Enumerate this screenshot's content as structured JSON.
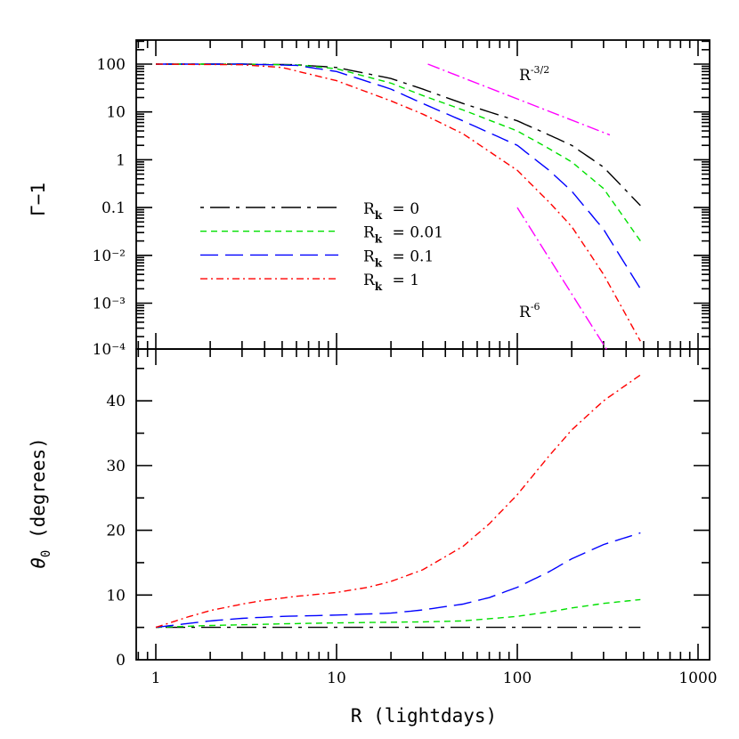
{
  "chart_data": [
    {
      "type": "line",
      "ylabel": "Γ−1",
      "xscale": "log",
      "yscale": "log",
      "xlim": [
        0.8,
        1170
      ],
      "ylim": [
        0.0001,
        316
      ],
      "x_ticks": [
        "1",
        "10",
        "100",
        "1000"
      ],
      "y_ticks": [
        "100",
        "10",
        "1",
        "0.1",
        "10⁻²",
        "10⁻³",
        "10⁻⁴"
      ],
      "legend_position": "center-left",
      "series": [
        {
          "name": "R_k = 0",
          "label_base": "R",
          "label_sub": "k",
          "label_value": "= 0",
          "color": "#000000",
          "dash": "dash-dot-long",
          "x": [
            1,
            3,
            6,
            10,
            20,
            30,
            50,
            100,
            150,
            200,
            300,
            480
          ],
          "y": [
            100,
            100,
            97,
            85,
            50,
            30,
            15,
            6.5,
            3.3,
            2,
            0.7,
            0.11
          ]
        },
        {
          "name": "R_k = 0.01",
          "label_base": "R",
          "label_sub": "k",
          "label_value": "= 0.01",
          "color": "#00e000",
          "dash": "short-dash",
          "x": [
            1,
            3,
            6,
            10,
            20,
            30,
            50,
            100,
            150,
            200,
            300,
            480
          ],
          "y": [
            100,
            100,
            96,
            80,
            40,
            22,
            11,
            4,
            1.7,
            0.9,
            0.25,
            0.02
          ]
        },
        {
          "name": "R_k = 0.1",
          "label_base": "R",
          "label_sub": "k",
          "label_value": "= 0.1",
          "color": "#0000ff",
          "dash": "long-dash",
          "x": [
            1,
            3,
            6,
            10,
            20,
            30,
            50,
            100,
            150,
            200,
            300,
            480
          ],
          "y": [
            100,
            100,
            94,
            70,
            30,
            15,
            6.5,
            2,
            0.6,
            0.22,
            0.035,
            0.002
          ]
        },
        {
          "name": "R_k = 1",
          "label_base": "R",
          "label_sub": "k",
          "label_value": "= 1",
          "color": "#ff0000",
          "dash": "dash-dot",
          "x": [
            1,
            3,
            5,
            10,
            20,
            30,
            50,
            100,
            150,
            200,
            300,
            480
          ],
          "y": [
            100,
            97,
            85,
            45,
            17,
            9,
            3.5,
            0.6,
            0.13,
            0.04,
            0.004,
            0.00016
          ]
        }
      ],
      "annotations": [
        {
          "base": "R",
          "exponent": "-3/2",
          "color": "#ff00ff",
          "line_x": [
            32,
            325
          ],
          "line_y": [
            100,
            3.3
          ]
        },
        {
          "base": "R",
          "exponent": "-6",
          "color": "#ff00ff",
          "line_x": [
            100,
            316
          ],
          "line_y": [
            0.1,
            0.0001
          ]
        }
      ]
    },
    {
      "type": "line",
      "ylabel": "θ₀ (degrees)",
      "ylabel_main": "θ",
      "ylabel_sub": "0",
      "ylabel_rest": " (degrees)",
      "xlabel": "R (lightdays)",
      "xscale": "log",
      "xlim": [
        0.8,
        1170
      ],
      "ylim": [
        0,
        48
      ],
      "x_ticks": [
        "1",
        "10",
        "100",
        "1000"
      ],
      "y_ticks": [
        "0",
        "10",
        "20",
        "30",
        "40"
      ],
      "series": [
        {
          "color": "#000000",
          "dash": "dash-dot-long",
          "x": [
            1,
            10,
            100,
            480
          ],
          "y": [
            5,
            5,
            5,
            5
          ]
        },
        {
          "color": "#00e000",
          "dash": "short-dash",
          "x": [
            1,
            2,
            3,
            5,
            10,
            20,
            30,
            50,
            100,
            150,
            200,
            300,
            480
          ],
          "y": [
            5,
            5.3,
            5.4,
            5.55,
            5.7,
            5.8,
            5.85,
            6.0,
            6.7,
            7.4,
            8.0,
            8.7,
            9.3
          ]
        },
        {
          "color": "#0000ff",
          "dash": "long-dash",
          "x": [
            1,
            1.5,
            2,
            3,
            5,
            10,
            20,
            30,
            50,
            70,
            100,
            150,
            200,
            300,
            480
          ],
          "y": [
            5,
            5.6,
            6.0,
            6.4,
            6.7,
            6.9,
            7.2,
            7.7,
            8.6,
            9.6,
            11.2,
            13.6,
            15.6,
            17.8,
            19.6
          ]
        },
        {
          "color": "#ff0000",
          "dash": "dash-dot",
          "x": [
            1,
            1.5,
            2,
            3,
            4,
            6,
            10,
            15,
            20,
            30,
            50,
            70,
            100,
            150,
            200,
            300,
            480
          ],
          "y": [
            5,
            6.6,
            7.6,
            8.6,
            9.2,
            9.8,
            10.4,
            11.2,
            12.1,
            13.9,
            17.5,
            21,
            25.5,
            31.5,
            35.5,
            40,
            44
          ]
        }
      ]
    }
  ]
}
